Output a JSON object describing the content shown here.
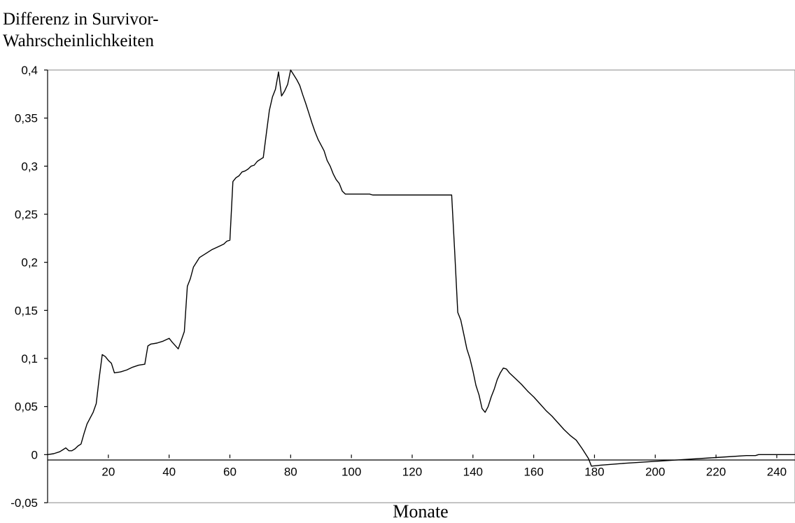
{
  "chart_data": {
    "type": "line",
    "title_lines": [
      "Differenz in Survivor-",
      "Wahrscheinlichkeiten"
    ],
    "xlabel": "Monate",
    "ylabel": "",
    "xlim": [
      0,
      246
    ],
    "ylim": [
      -0.05,
      0.4
    ],
    "x_ticks": [
      {
        "value": 20,
        "label": "20"
      },
      {
        "value": 40,
        "label": "40"
      },
      {
        "value": 60,
        "label": "60"
      },
      {
        "value": 80,
        "label": "80"
      },
      {
        "value": 100,
        "label": "100"
      },
      {
        "value": 120,
        "label": "120"
      },
      {
        "value": 140,
        "label": "140"
      },
      {
        "value": 160,
        "label": "160"
      },
      {
        "value": 180,
        "label": "180"
      },
      {
        "value": 200,
        "label": "200"
      },
      {
        "value": 220,
        "label": "220"
      },
      {
        "value": 240,
        "label": "240"
      }
    ],
    "y_ticks": [
      {
        "value": 0.4,
        "label": "0,4"
      },
      {
        "value": 0.35,
        "label": "0,35"
      },
      {
        "value": 0.3,
        "label": "0,3"
      },
      {
        "value": 0.25,
        "label": "0,25"
      },
      {
        "value": 0.2,
        "label": "0,2"
      },
      {
        "value": 0.15,
        "label": "0,15"
      },
      {
        "value": 0.1,
        "label": "0,1"
      },
      {
        "value": 0.05,
        "label": "0,05"
      },
      {
        "value": 0,
        "label": "0"
      },
      {
        "value": -0.05,
        "label": "-0,05"
      }
    ],
    "grid": false,
    "legend": "none",
    "series": [
      {
        "color": "#000000",
        "points": [
          [
            0,
            0
          ],
          [
            2,
            0.001
          ],
          [
            4,
            0.003
          ],
          [
            5,
            0.005
          ],
          [
            6,
            0.007
          ],
          [
            7,
            0.004
          ],
          [
            8,
            0.004
          ],
          [
            9,
            0.006
          ],
          [
            10,
            0.009
          ],
          [
            11,
            0.011
          ],
          [
            12,
            0.022
          ],
          [
            13,
            0.032
          ],
          [
            14,
            0.038
          ],
          [
            15,
            0.044
          ],
          [
            16,
            0.053
          ],
          [
            17,
            0.08
          ],
          [
            18,
            0.104
          ],
          [
            19,
            0.102
          ],
          [
            20,
            0.098
          ],
          [
            21,
            0.095
          ],
          [
            22,
            0.085
          ],
          [
            24,
            0.086
          ],
          [
            26,
            0.088
          ],
          [
            28,
            0.091
          ],
          [
            30,
            0.093
          ],
          [
            32,
            0.094
          ],
          [
            33,
            0.113
          ],
          [
            34,
            0.115
          ],
          [
            36,
            0.116
          ],
          [
            38,
            0.118
          ],
          [
            40,
            0.121
          ],
          [
            41,
            0.117
          ],
          [
            43,
            0.11
          ],
          [
            45,
            0.128
          ],
          [
            46,
            0.175
          ],
          [
            47,
            0.183
          ],
          [
            48,
            0.195
          ],
          [
            50,
            0.205
          ],
          [
            52,
            0.209
          ],
          [
            54,
            0.213
          ],
          [
            56,
            0.216
          ],
          [
            58,
            0.219
          ],
          [
            59,
            0.222
          ],
          [
            60,
            0.223
          ],
          [
            61,
            0.284
          ],
          [
            62,
            0.288
          ],
          [
            63,
            0.29
          ],
          [
            64,
            0.294
          ],
          [
            65,
            0.295
          ],
          [
            66,
            0.297
          ],
          [
            67,
            0.3
          ],
          [
            68,
            0.301
          ],
          [
            69,
            0.305
          ],
          [
            70,
            0.307
          ],
          [
            71,
            0.309
          ],
          [
            72,
            0.334
          ],
          [
            73,
            0.358
          ],
          [
            74,
            0.372
          ],
          [
            75,
            0.38
          ],
          [
            76,
            0.398
          ],
          [
            77,
            0.373
          ],
          [
            78,
            0.378
          ],
          [
            79,
            0.385
          ],
          [
            80,
            0.4
          ],
          [
            81,
            0.395
          ],
          [
            82,
            0.39
          ],
          [
            83,
            0.384
          ],
          [
            84,
            0.374
          ],
          [
            85,
            0.365
          ],
          [
            86,
            0.355
          ],
          [
            87,
            0.345
          ],
          [
            88,
            0.336
          ],
          [
            89,
            0.328
          ],
          [
            90,
            0.322
          ],
          [
            91,
            0.316
          ],
          [
            92,
            0.306
          ],
          [
            93,
            0.3
          ],
          [
            94,
            0.292
          ],
          [
            95,
            0.286
          ],
          [
            96,
            0.282
          ],
          [
            97,
            0.274
          ],
          [
            98,
            0.271
          ],
          [
            106,
            0.271
          ],
          [
            107,
            0.27
          ],
          [
            133,
            0.27
          ],
          [
            134,
            0.21
          ],
          [
            135,
            0.148
          ],
          [
            136,
            0.14
          ],
          [
            137,
            0.125
          ],
          [
            138,
            0.11
          ],
          [
            139,
            0.1
          ],
          [
            140,
            0.087
          ],
          [
            141,
            0.072
          ],
          [
            142,
            0.062
          ],
          [
            143,
            0.048
          ],
          [
            144,
            0.044
          ],
          [
            145,
            0.05
          ],
          [
            146,
            0.06
          ],
          [
            147,
            0.068
          ],
          [
            148,
            0.078
          ],
          [
            149,
            0.085
          ],
          [
            150,
            0.09
          ],
          [
            151,
            0.089
          ],
          [
            152,
            0.085
          ],
          [
            154,
            0.079
          ],
          [
            156,
            0.073
          ],
          [
            158,
            0.066
          ],
          [
            160,
            0.06
          ],
          [
            162,
            0.053
          ],
          [
            164,
            0.046
          ],
          [
            166,
            0.04
          ],
          [
            168,
            0.033
          ],
          [
            170,
            0.026
          ],
          [
            172,
            0.02
          ],
          [
            174,
            0.015
          ],
          [
            176,
            0.006
          ],
          [
            178,
            -0.004
          ],
          [
            179,
            -0.012
          ],
          [
            182,
            -0.011
          ],
          [
            190,
            -0.009
          ],
          [
            200,
            -0.007
          ],
          [
            210,
            -0.005
          ],
          [
            220,
            -0.003
          ],
          [
            230,
            -0.001
          ],
          [
            233,
            -0.001
          ],
          [
            234,
            0
          ],
          [
            246,
            0
          ]
        ]
      }
    ]
  }
}
